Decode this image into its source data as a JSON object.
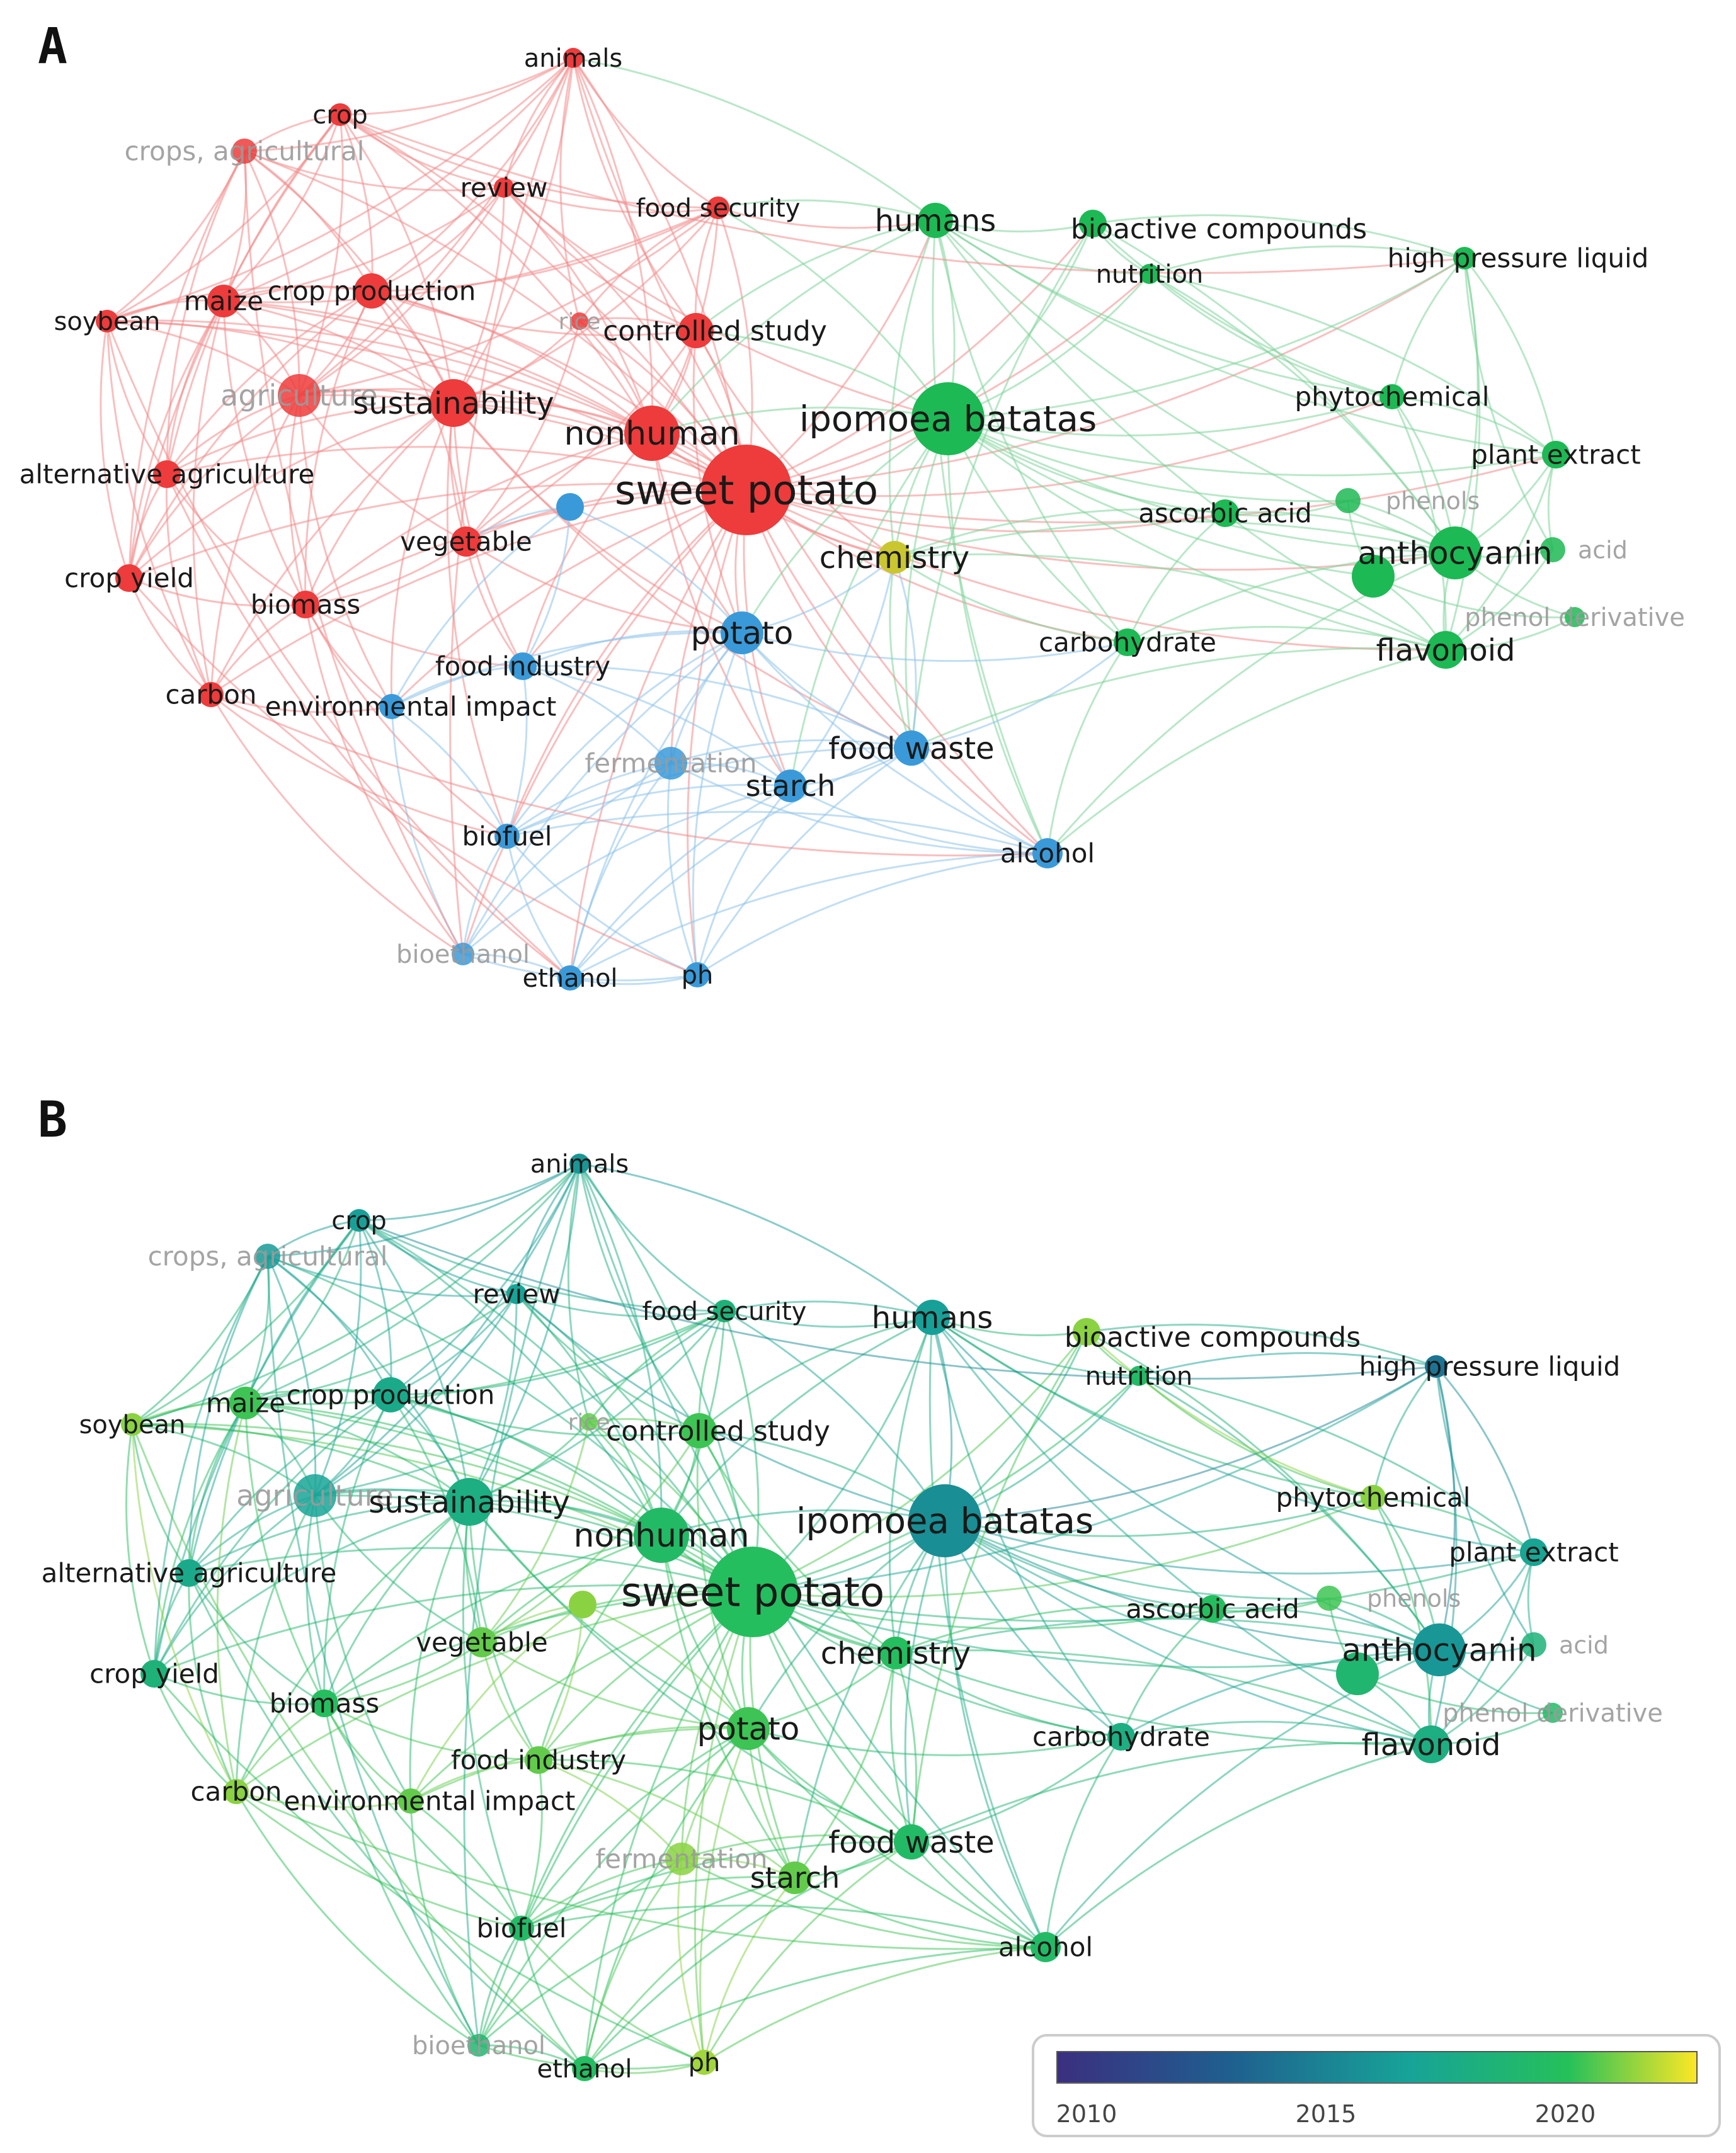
{
  "panels": [
    {
      "letter": "A",
      "colors": {
        "red": "#ee3b3b",
        "green": "#1db954",
        "blue": "#3a9ad9",
        "edge_red": "#f28b8b",
        "edge_green": "#7fd39a",
        "edge_blue": "#8ec3ea",
        "chemistry": "#c9c630"
      }
    },
    {
      "letter": "B",
      "legend": {
        "ticks": [
          "2010",
          "2015",
          "2020"
        ]
      },
      "gradient": [
        "#3b2f7f",
        "#1f5f8f",
        "#17a398",
        "#26c05a",
        "#fde725"
      ]
    }
  ],
  "nodes": [
    {
      "id": "animals",
      "label": "animals",
      "cluster": "red",
      "year": 2016.0
    },
    {
      "id": "crop",
      "label": "crop",
      "cluster": "red",
      "year": 2016.5
    },
    {
      "id": "crops_agricultural",
      "label": "crops, agricultural",
      "cluster": "red",
      "year": 2016.2,
      "faded": true
    },
    {
      "id": "review",
      "label": "review",
      "cluster": "red",
      "year": 2016.8
    },
    {
      "id": "food_security",
      "label": "food security",
      "cluster": "red",
      "year": 2018.5
    },
    {
      "id": "humans",
      "label": "humans",
      "cluster": "green",
      "year": 2016.5
    },
    {
      "id": "bioactive_compounds",
      "label": "bioactive compounds",
      "cluster": "green",
      "year": 2021.5
    },
    {
      "id": "high_pressure_liquid",
      "label": "high pressure liquid",
      "cluster": "green",
      "year": 2014.0
    },
    {
      "id": "nutrition",
      "label": "nutrition",
      "cluster": "green",
      "year": 2019.5
    },
    {
      "id": "soybean",
      "label": "soybean",
      "cluster": "red",
      "year": 2021.5
    },
    {
      "id": "maize",
      "label": "maize",
      "cluster": "red",
      "year": 2020.5
    },
    {
      "id": "crop_production",
      "label": "crop production",
      "cluster": "red",
      "year": 2017.5
    },
    {
      "id": "rice",
      "label": "rice",
      "cluster": "red",
      "year": 2021.0,
      "faded": true
    },
    {
      "id": "controlled_study",
      "label": "controlled study",
      "cluster": "red",
      "year": 2020.5
    },
    {
      "id": "agriculture",
      "label": "agriculture",
      "cluster": "red",
      "year": 2016.8,
      "faded": true
    },
    {
      "id": "sustainability",
      "label": "sustainability",
      "cluster": "red",
      "year": 2018.0
    },
    {
      "id": "nonhuman",
      "label": "nonhuman",
      "cluster": "red",
      "year": 2019.5
    },
    {
      "id": "ipomoea_batatas",
      "label": "ipomoea batatas",
      "cluster": "green",
      "year": 2015.5
    },
    {
      "id": "phytochemical",
      "label": "phytochemical",
      "cluster": "green",
      "year": 2021.5
    },
    {
      "id": "plant_extract",
      "label": "plant extract",
      "cluster": "green",
      "year": 2017.0
    },
    {
      "id": "alternative_agriculture",
      "label": "alternative agriculture",
      "cluster": "red",
      "year": 2017.5
    },
    {
      "id": "sweet_potato",
      "label": "sweet potato",
      "cluster": "red",
      "year": 2020.0
    },
    {
      "id": "blue_small",
      "label": "",
      "cluster": "blue",
      "year": 2021.5
    },
    {
      "id": "ascorbic_acid",
      "label": "ascorbic acid",
      "cluster": "green",
      "year": 2020.0
    },
    {
      "id": "phenols",
      "label": "phenols",
      "cluster": "green",
      "year": 2020.5,
      "faded": true
    },
    {
      "id": "anthocyanin",
      "label": "anthocyanin",
      "cluster": "green",
      "year": 2016.0
    },
    {
      "id": "green_acid",
      "label": "acid",
      "cluster": "green",
      "year": 2018.5,
      "faded": true
    },
    {
      "id": "anth_big",
      "label": "",
      "cluster": "green",
      "year": 2019.0
    },
    {
      "id": "vegetable",
      "label": "vegetable",
      "cluster": "red",
      "year": 2021.0
    },
    {
      "id": "chemistry",
      "label": "chemistry",
      "cluster": "green",
      "year": 2020.0
    },
    {
      "id": "crop_yield",
      "label": "crop yield",
      "cluster": "red",
      "year": 2018.5
    },
    {
      "id": "biomass",
      "label": "biomass",
      "cluster": "red",
      "year": 2020.0
    },
    {
      "id": "phenol_derivative",
      "label": "phenol derivative",
      "cluster": "green",
      "year": 2019.5,
      "faded": true
    },
    {
      "id": "potato",
      "label": "potato",
      "cluster": "blue",
      "year": 2020.5
    },
    {
      "id": "carbohydrate",
      "label": "carbohydrate",
      "cluster": "green",
      "year": 2018.0
    },
    {
      "id": "flavonoid",
      "label": "flavonoid",
      "cluster": "green",
      "year": 2018.0
    },
    {
      "id": "food_industry",
      "label": "food industry",
      "cluster": "blue",
      "year": 2021.0
    },
    {
      "id": "carbon",
      "label": "carbon",
      "cluster": "red",
      "year": 2021.5
    },
    {
      "id": "environmental_impact",
      "label": "environmental impact",
      "cluster": "blue",
      "year": 2021.0
    },
    {
      "id": "fermentation",
      "label": "fermentation",
      "cluster": "blue",
      "year": 2021.5,
      "faded": true
    },
    {
      "id": "food_waste",
      "label": "food waste",
      "cluster": "blue",
      "year": 2019.5
    },
    {
      "id": "starch",
      "label": "starch",
      "cluster": "blue",
      "year": 2021.0
    },
    {
      "id": "biofuel",
      "label": "biofuel",
      "cluster": "blue",
      "year": 2019.5
    },
    {
      "id": "alcohol",
      "label": "alcohol",
      "cluster": "blue",
      "year": 2019.5
    },
    {
      "id": "bioethanol",
      "label": "bioethanol",
      "cluster": "blue",
      "year": 2019.0,
      "faded": true
    },
    {
      "id": "ethanol",
      "label": "ethanol",
      "cluster": "blue",
      "year": 2019.8
    },
    {
      "id": "ph",
      "label": "ph",
      "cluster": "blue",
      "year": 2021.8
    }
  ]
}
